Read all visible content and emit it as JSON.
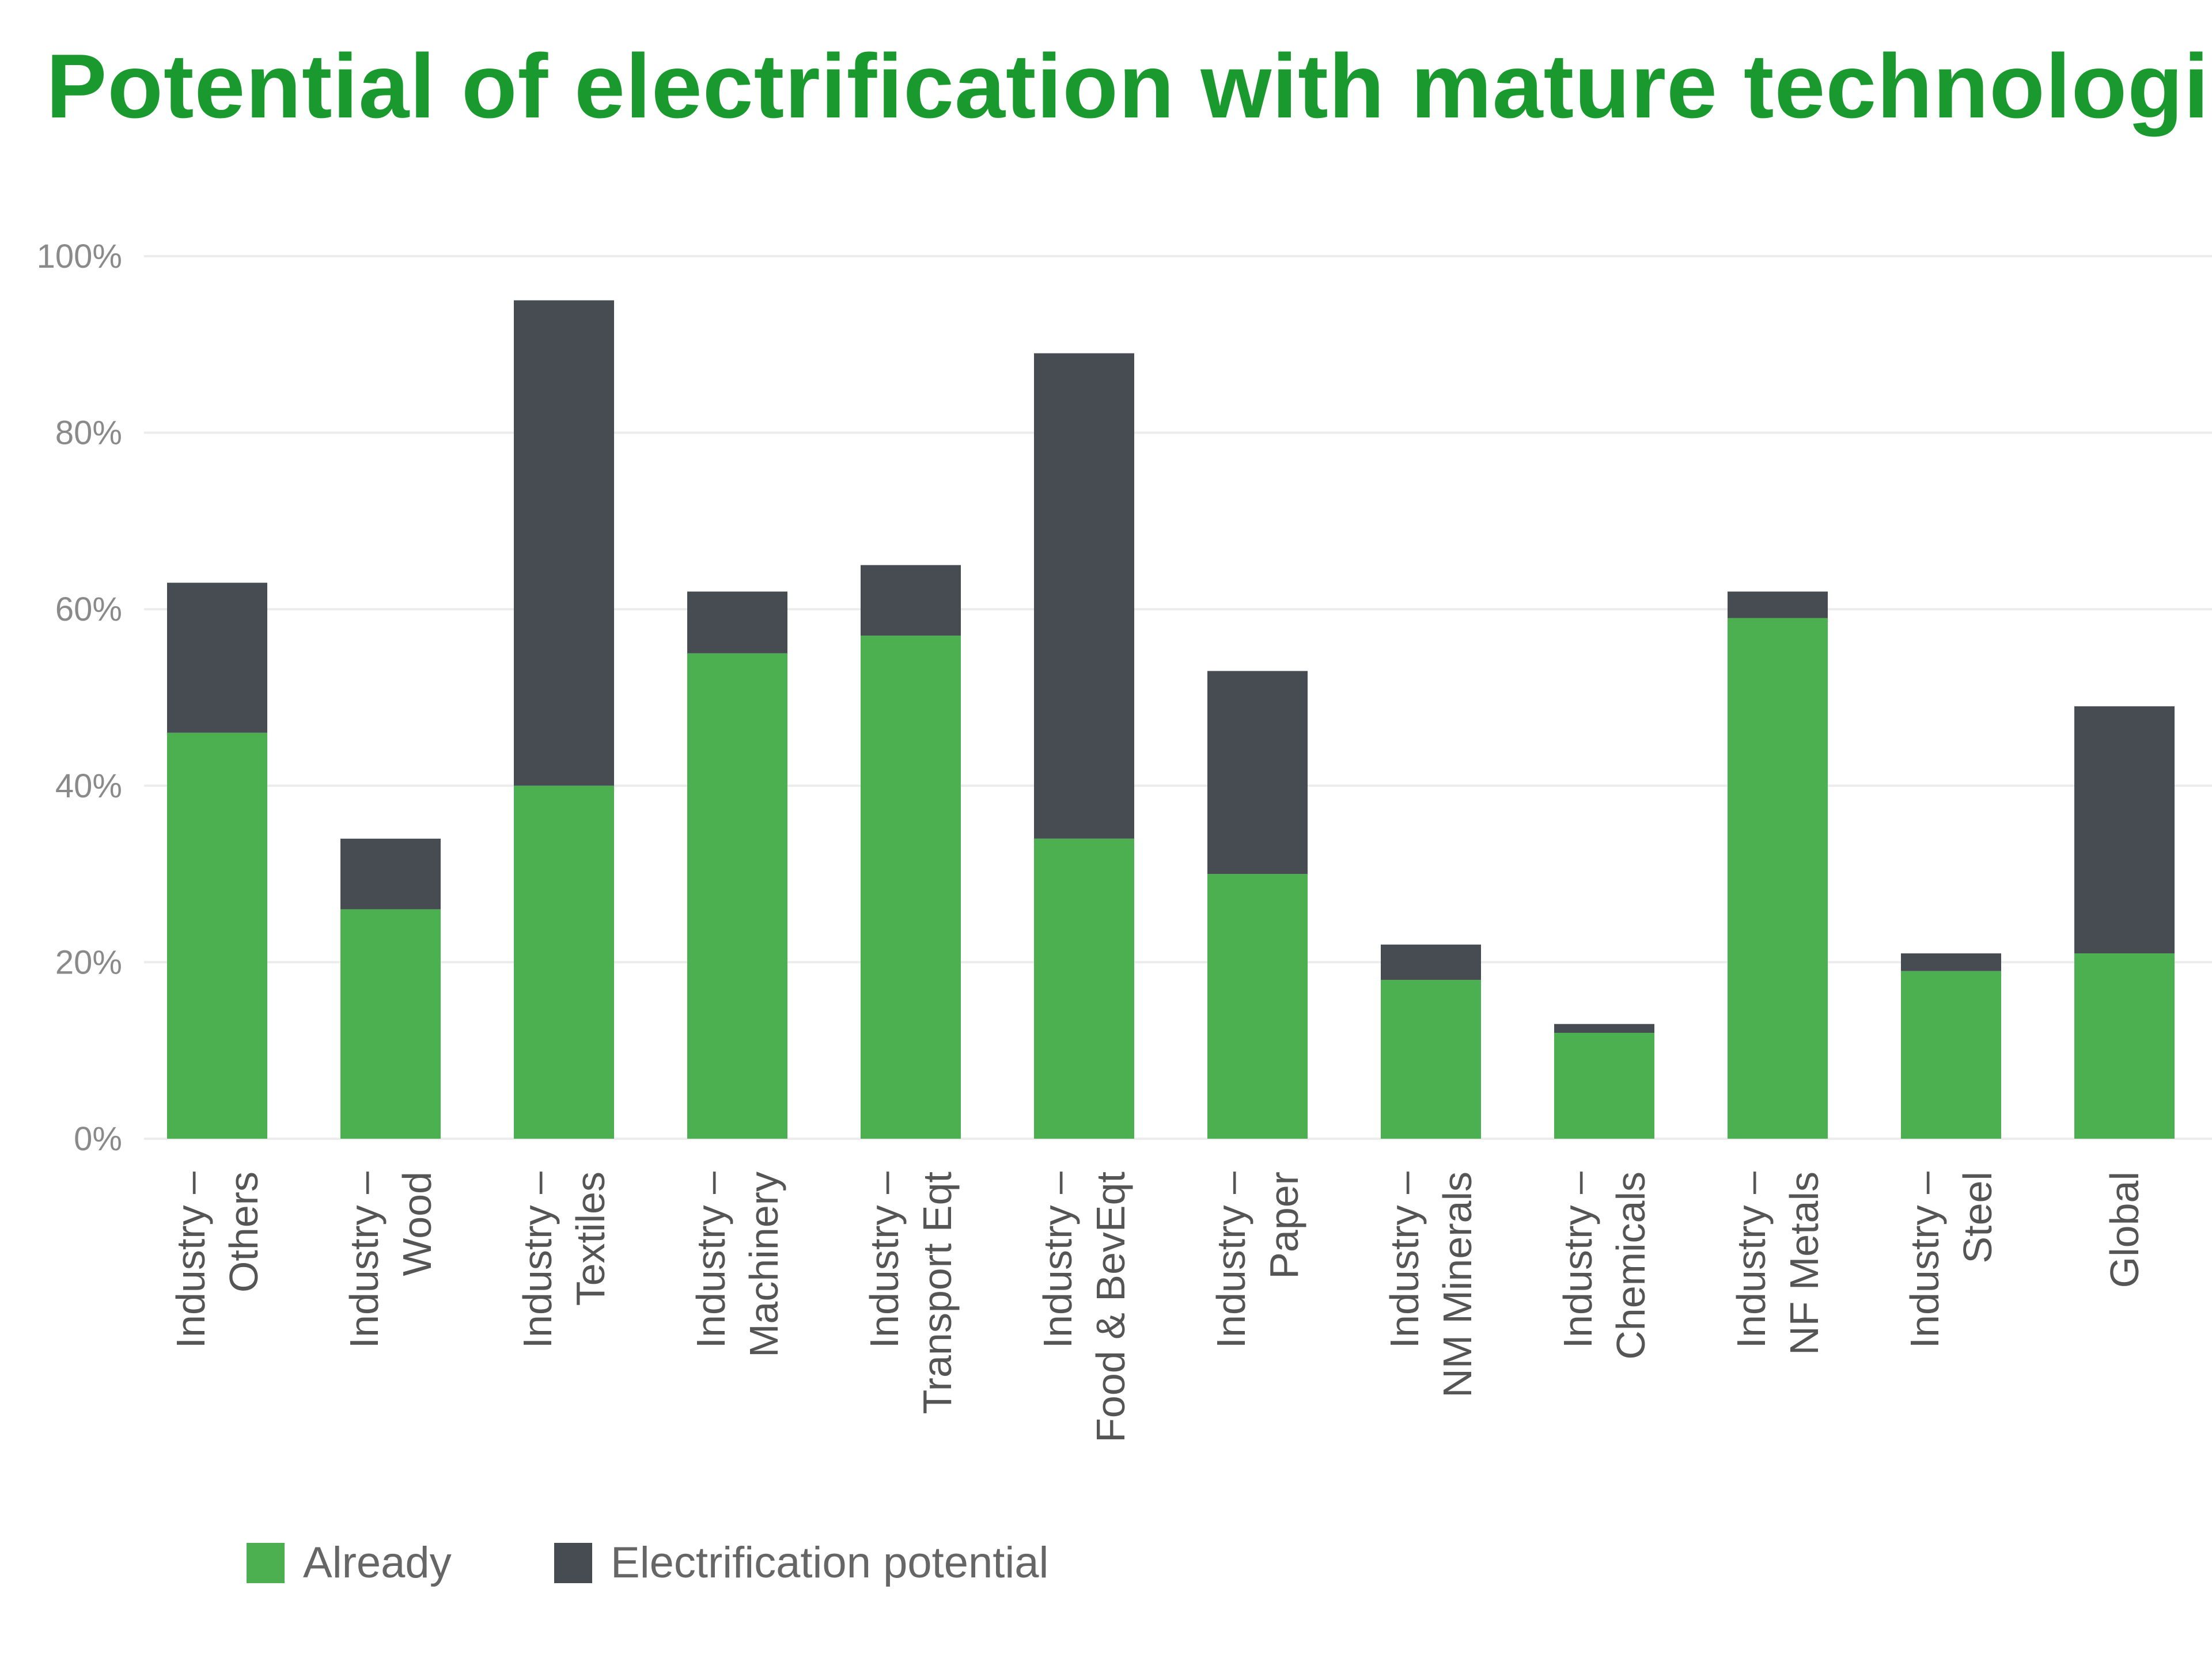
{
  "chart_data": {
    "type": "bar",
    "stacked": true,
    "title": "Potential of electrification with mature technologies",
    "xlabel": "",
    "ylabel": "",
    "ylim": [
      0,
      100
    ],
    "yticks": [
      "0%",
      "20%",
      "40%",
      "60%",
      "80%",
      "100%"
    ],
    "grid": true,
    "legend_placement": "bottom-left",
    "categories": [
      [
        "Industry –",
        "Others"
      ],
      [
        "Industry –",
        "Wood"
      ],
      [
        "Industry –",
        "Textiles"
      ],
      [
        "Industry –",
        "Machinery"
      ],
      [
        "Industry –",
        "Transport Eqt"
      ],
      [
        "Industry –",
        "Food & BevEqt"
      ],
      [
        "Industry –",
        "Paper"
      ],
      [
        "Industry –",
        "NM Minerals"
      ],
      [
        "Industry –",
        "Chemicals"
      ],
      [
        "Industry –",
        "NF Metals"
      ],
      [
        "Industry –",
        "Steel"
      ],
      [
        "Global"
      ]
    ],
    "series": [
      {
        "name": "Already",
        "color": "#4caf50",
        "values": [
          46,
          26,
          40,
          55,
          57,
          34,
          30,
          18,
          12,
          59,
          19,
          21
        ]
      },
      {
        "name": "Electrification potential",
        "color": "#474c52",
        "values": [
          17,
          8,
          55,
          7,
          8,
          55,
          23,
          4,
          1,
          3,
          2,
          28
        ]
      }
    ]
  }
}
